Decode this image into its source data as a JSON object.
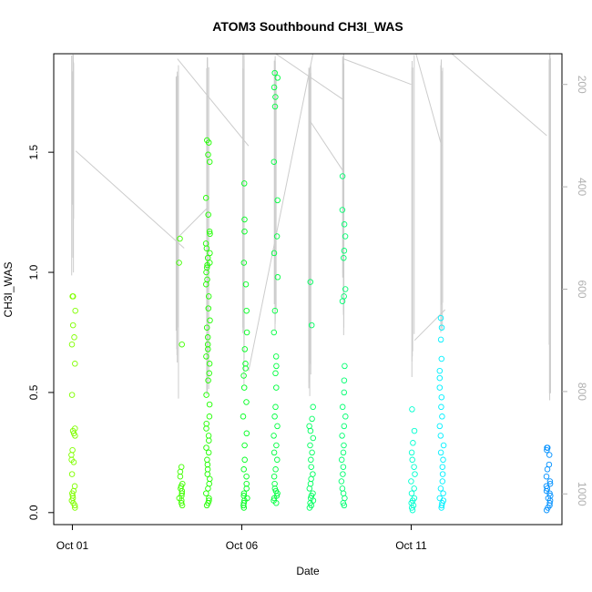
{
  "chart_data": {
    "type": "scatter",
    "title": "ATOM3 Southbound CH3I_WAS",
    "xlabel": "Date",
    "ylabel": "CH3I_WAS",
    "x_ticks": [
      "Oct 01",
      "Oct 06",
      "Oct 11"
    ],
    "x_tick_values": [
      1,
      6,
      11
    ],
    "y_ticks": [
      "0.0",
      "0.5",
      "1.0",
      "1.5"
    ],
    "y_tick_values": [
      0,
      0.5,
      1.0,
      1.5
    ],
    "y2_ticks": [
      "200",
      "400",
      "600",
      "800",
      "1000"
    ],
    "y2_tick_values": [
      200,
      400,
      600,
      800,
      1000
    ],
    "xlim": [
      0.45,
      15.45
    ],
    "ylim": [
      -0.05,
      1.91
    ],
    "y2lim": [
      1060,
      140
    ],
    "series_color_scale": [
      "#7fff00",
      "#00ff40",
      "#00ff99",
      "#00ffff",
      "#0080ff"
    ],
    "background_series_color": "#cccccc",
    "clusters": [
      {
        "x": 1.03,
        "color": "#80ff00",
        "values": [
          0.9,
          0.9,
          0.84,
          0.78,
          0.73,
          0.7,
          0.62,
          0.49,
          0.35,
          0.34,
          0.33,
          0.32,
          0.26,
          0.24,
          0.22,
          0.21,
          0.16,
          0.11,
          0.09,
          0.08,
          0.07,
          0.06,
          0.05,
          0.04,
          0.03,
          0.02
        ]
      },
      {
        "x": 4.2,
        "color": "#40ff00",
        "values": [
          1.14,
          1.04,
          0.7,
          0.19,
          0.17,
          0.15,
          0.12,
          0.11,
          0.1,
          0.09,
          0.08,
          0.07,
          0.06,
          0.05,
          0.04,
          0.03
        ]
      },
      {
        "x": 5.0,
        "color": "#20ff00",
        "values": [
          1.55,
          1.54,
          1.49,
          1.46,
          1.31,
          1.24,
          1.17,
          1.16,
          1.12,
          1.1,
          1.08,
          1.06,
          1.04,
          1.03,
          1.02,
          1.0,
          0.97,
          0.95,
          0.9,
          0.85,
          0.8,
          0.77,
          0.73,
          0.7,
          0.68,
          0.65,
          0.62,
          0.58,
          0.55,
          0.49,
          0.45,
          0.4,
          0.37,
          0.35,
          0.32,
          0.3,
          0.27,
          0.25,
          0.22,
          0.2,
          0.18,
          0.16,
          0.14,
          0.12,
          0.1,
          0.08,
          0.06,
          0.05,
          0.04,
          0.03
        ]
      },
      {
        "x": 6.1,
        "color": "#00ff20",
        "values": [
          1.37,
          1.22,
          1.17,
          1.04,
          0.95,
          0.84,
          0.75,
          0.68,
          0.62,
          0.6,
          0.57,
          0.52,
          0.46,
          0.4,
          0.33,
          0.28,
          0.22,
          0.18,
          0.15,
          0.12,
          0.1,
          0.08,
          0.07,
          0.06,
          0.05,
          0.04,
          0.03,
          0.02
        ]
      },
      {
        "x": 7.0,
        "color": "#00ff40",
        "values": [
          1.83,
          1.81,
          1.77,
          1.73,
          1.69,
          1.46,
          1.3,
          1.15,
          1.08,
          0.98,
          0.84,
          0.75,
          0.65,
          0.61,
          0.58,
          0.52,
          0.44,
          0.4,
          0.36,
          0.32,
          0.28,
          0.25,
          0.22,
          0.18,
          0.15,
          0.12,
          0.1,
          0.09,
          0.08,
          0.07,
          0.06,
          0.05,
          0.04
        ]
      },
      {
        "x": 8.05,
        "color": "#00ff60",
        "values": [
          0.96,
          0.78,
          0.44,
          0.39,
          0.36,
          0.34,
          0.31,
          0.28,
          0.25,
          0.22,
          0.19,
          0.16,
          0.14,
          0.12,
          0.1,
          0.08,
          0.07,
          0.06,
          0.05,
          0.04,
          0.03,
          0.02
        ]
      },
      {
        "x": 9.0,
        "color": "#00ff70",
        "values": [
          1.4,
          1.26,
          1.2,
          1.15,
          1.09,
          1.06,
          0.93,
          0.9,
          0.88,
          0.61,
          0.55,
          0.5,
          0.44,
          0.4,
          0.36,
          0.32,
          0.28,
          0.25,
          0.22,
          0.19,
          0.16,
          0.13,
          0.1,
          0.08,
          0.06,
          0.04,
          0.03
        ]
      },
      {
        "x": 11.05,
        "color": "#00ffd0",
        "values": [
          0.43,
          0.34,
          0.29,
          0.25,
          0.22,
          0.19,
          0.16,
          0.13,
          0.1,
          0.08,
          0.06,
          0.05,
          0.04,
          0.03,
          0.02,
          0.01
        ]
      },
      {
        "x": 11.9,
        "color": "#00f0ff",
        "values": [
          0.81,
          0.77,
          0.72,
          0.64,
          0.59,
          0.56,
          0.52,
          0.48,
          0.44,
          0.4,
          0.36,
          0.32,
          0.28,
          0.25,
          0.22,
          0.19,
          0.16,
          0.13,
          0.1,
          0.08,
          0.06,
          0.05,
          0.04,
          0.03,
          0.02
        ]
      },
      {
        "x": 15.05,
        "color": "#0090ff",
        "values": [
          0.27,
          0.27,
          0.26,
          0.24,
          0.2,
          0.18,
          0.15,
          0.13,
          0.12,
          0.11,
          0.1,
          0.09,
          0.08,
          0.07,
          0.06,
          0.05,
          0.04,
          0.03,
          0.02,
          0.01
        ]
      }
    ],
    "profiles": [
      {
        "x": 1.0,
        "top": 140,
        "bottom": 580
      },
      {
        "x": 4.1,
        "top": 160,
        "bottom": 820
      },
      {
        "x": 5.0,
        "top": 140,
        "bottom": 840
      },
      {
        "x": 6.05,
        "top": 140,
        "bottom": 820
      },
      {
        "x": 7.0,
        "top": 140,
        "bottom": 760
      },
      {
        "x": 8.0,
        "top": 150,
        "bottom": 820
      },
      {
        "x": 9.0,
        "top": 140,
        "bottom": 700
      },
      {
        "x": 11.05,
        "top": 140,
        "bottom": 810
      },
      {
        "x": 11.9,
        "top": 140,
        "bottom": 700
      },
      {
        "x": 15.1,
        "top": 140,
        "bottom": 820
      }
    ],
    "transits": [
      [
        [
          1.1,
          330
        ],
        [
          4.3,
          520
        ]
      ],
      [
        [
          4.1,
          150
        ],
        [
          6.2,
          320
        ]
      ],
      [
        [
          5.0,
          440
        ],
        [
          4.1,
          500
        ]
      ],
      [
        [
          6.2,
          760
        ],
        [
          8.1,
          140
        ]
      ],
      [
        [
          7.0,
          140
        ],
        [
          9.0,
          230
        ]
      ],
      [
        [
          8.0,
          270
        ],
        [
          9.0,
          370
        ]
      ],
      [
        [
          9.0,
          150
        ],
        [
          11.0,
          200
        ]
      ],
      [
        [
          11.1,
          130
        ],
        [
          11.9,
          320
        ]
      ],
      [
        [
          11.1,
          700
        ],
        [
          12.0,
          640
        ]
      ],
      [
        [
          12.2,
          140
        ],
        [
          15.0,
          300
        ]
      ]
    ]
  }
}
